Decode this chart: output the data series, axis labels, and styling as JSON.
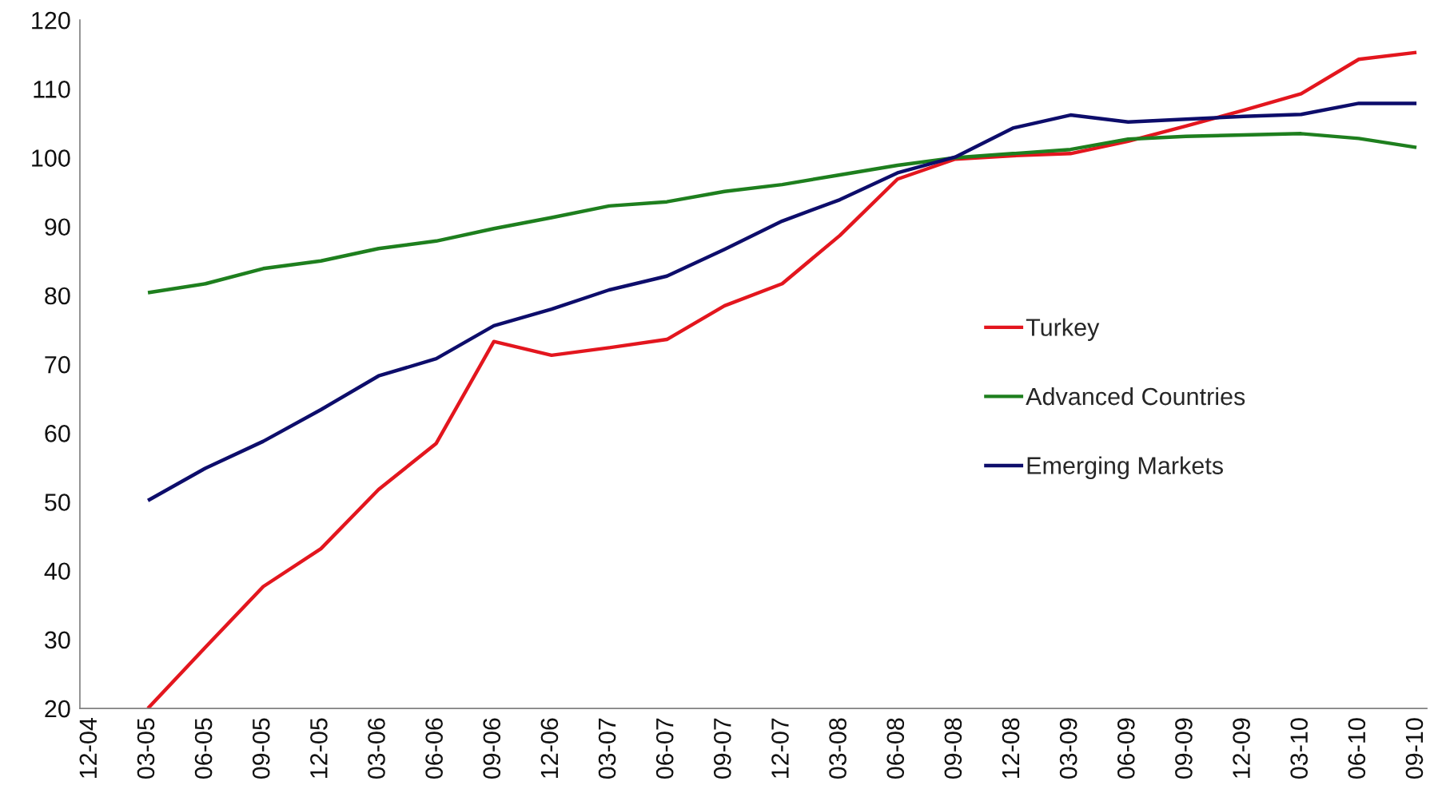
{
  "chart_data": {
    "type": "line",
    "categories": [
      "12-04",
      "03-05",
      "06-05",
      "09-05",
      "12-05",
      "03-06",
      "06-06",
      "09-06",
      "12-06",
      "03-07",
      "06-07",
      "09-07",
      "12-07",
      "03-08",
      "06-08",
      "09-08",
      "12-08",
      "03-09",
      "06-09",
      "09-09",
      "12-09",
      "03-10",
      "06-10",
      "09-10"
    ],
    "series": [
      {
        "name": "Turkey",
        "color": "#e3161e",
        "values": [
          null,
          20,
          28.9,
          37.7,
          43.2,
          51.8,
          58.5,
          73.3,
          71.3,
          72.4,
          73.6,
          78.5,
          81.7,
          88.7,
          96.9,
          99.8,
          100.3,
          100.6,
          102.4,
          104.6,
          106.9,
          109.3,
          114.3,
          115.3
        ]
      },
      {
        "name": "Advanced Countries",
        "color": "#1e7f1e",
        "values": [
          null,
          80.4,
          81.7,
          83.9,
          85.0,
          86.8,
          87.9,
          89.7,
          91.3,
          93.0,
          93.6,
          95.1,
          96.1,
          97.5,
          98.9,
          100.0,
          100.6,
          101.2,
          102.7,
          103.1,
          103.3,
          103.5,
          102.8,
          101.5
        ]
      },
      {
        "name": "Emerging Markets",
        "color": "#0d0d6b",
        "values": [
          null,
          50.2,
          54.9,
          58.8,
          63.4,
          68.3,
          70.8,
          75.6,
          78.0,
          80.8,
          82.8,
          86.7,
          90.8,
          93.9,
          97.8,
          100.1,
          104.3,
          106.2,
          105.2,
          105.6,
          106.0,
          106.3,
          107.9,
          107.9
        ]
      }
    ],
    "ylim": [
      20,
      120
    ],
    "yticks": [
      20,
      30,
      40,
      50,
      60,
      70,
      80,
      90,
      100,
      110,
      120
    ],
    "legend": "right"
  }
}
